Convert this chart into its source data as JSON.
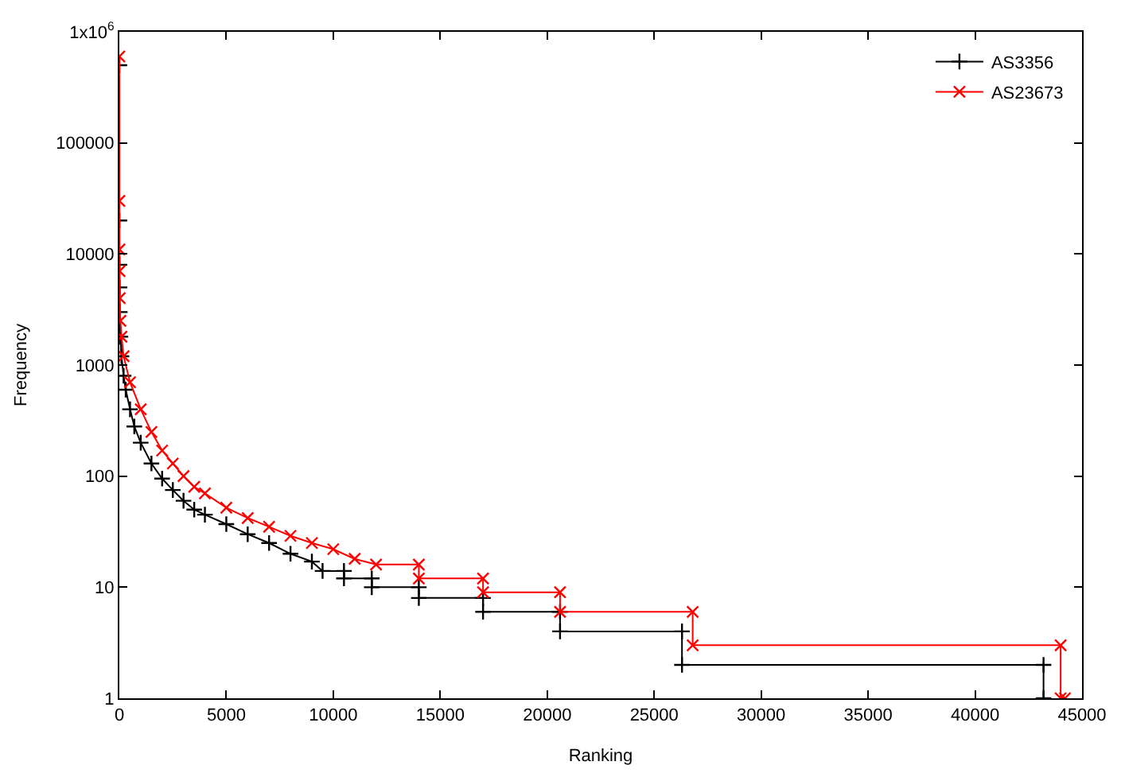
{
  "chart_data": {
    "type": "line",
    "xlabel": "Ranking",
    "ylabel": "Frequency",
    "log": "y",
    "legend": "top right",
    "xlim": [
      0,
      45000
    ],
    "xticks": [
      0,
      5000,
      10000,
      15000,
      20000,
      25000,
      30000,
      35000,
      40000,
      45000
    ],
    "ylim": [
      1,
      1000000
    ],
    "yticks": [
      1,
      10,
      100,
      1000,
      10000,
      100000,
      {
        "value": 1000000,
        "label": "1x10$^{6}$"
      }
    ],
    "series": [
      {
        "name": "AS3356",
        "color": "#000000",
        "marker": "cross",
        "x": [
          1,
          2,
          5,
          10,
          20,
          50,
          100,
          200,
          300,
          500,
          700,
          1000,
          1500,
          2000,
          2500,
          3000,
          3500,
          4000,
          5000,
          6000,
          7000,
          8000,
          9000,
          9500,
          10500,
          10500,
          11800,
          11800,
          14000,
          14000,
          17000,
          17000,
          20600,
          20600,
          26300,
          26300,
          43200,
          43200
        ],
        "values": [
          500000,
          20000,
          8000,
          5000,
          3000,
          1800,
          1200,
          800,
          600,
          400,
          280,
          200,
          130,
          95,
          75,
          60,
          50,
          45,
          37,
          30,
          25,
          20,
          17,
          14,
          14,
          12,
          12,
          10,
          10,
          8,
          8,
          6,
          6,
          4,
          4,
          2,
          2,
          1
        ]
      },
      {
        "name": "AS23673",
        "color": "#ff0000",
        "marker": "x",
        "x": [
          1,
          2,
          5,
          10,
          20,
          50,
          100,
          200,
          500,
          1000,
          1500,
          2000,
          2500,
          3000,
          3500,
          4000,
          5000,
          6000,
          7000,
          8000,
          9000,
          10000,
          11000,
          12000,
          14000,
          14000,
          17000,
          17000,
          20600,
          20600,
          26800,
          26800,
          44000,
          44000,
          44200
        ],
        "values": [
          600000,
          30000,
          11000,
          7000,
          4000,
          2500,
          1800,
          1200,
          700,
          400,
          250,
          170,
          130,
          100,
          80,
          70,
          52,
          42,
          35,
          29,
          25,
          22,
          18,
          16,
          16,
          12,
          12,
          9,
          9,
          6,
          6,
          3,
          3,
          1,
          1
        ]
      }
    ]
  }
}
